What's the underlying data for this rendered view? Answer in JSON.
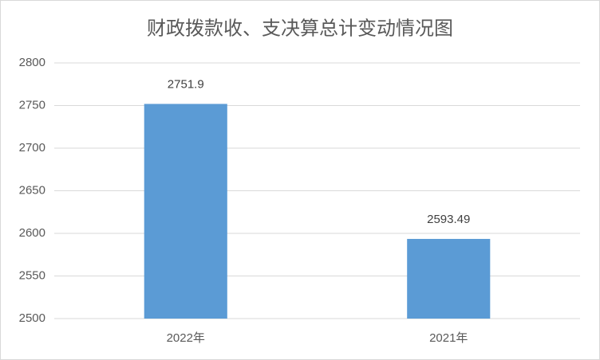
{
  "chart_data": {
    "type": "bar",
    "title": "财政拨款收、支决算总计变动情况图",
    "categories": [
      "2022年",
      "2021年"
    ],
    "values": [
      2751.9,
      2593.49
    ],
    "color": "#5b9bd5",
    "ylim": [
      2500,
      2800
    ],
    "yticks": [
      2500,
      2550,
      2600,
      2650,
      2700,
      2750,
      2800
    ],
    "grid": true
  }
}
